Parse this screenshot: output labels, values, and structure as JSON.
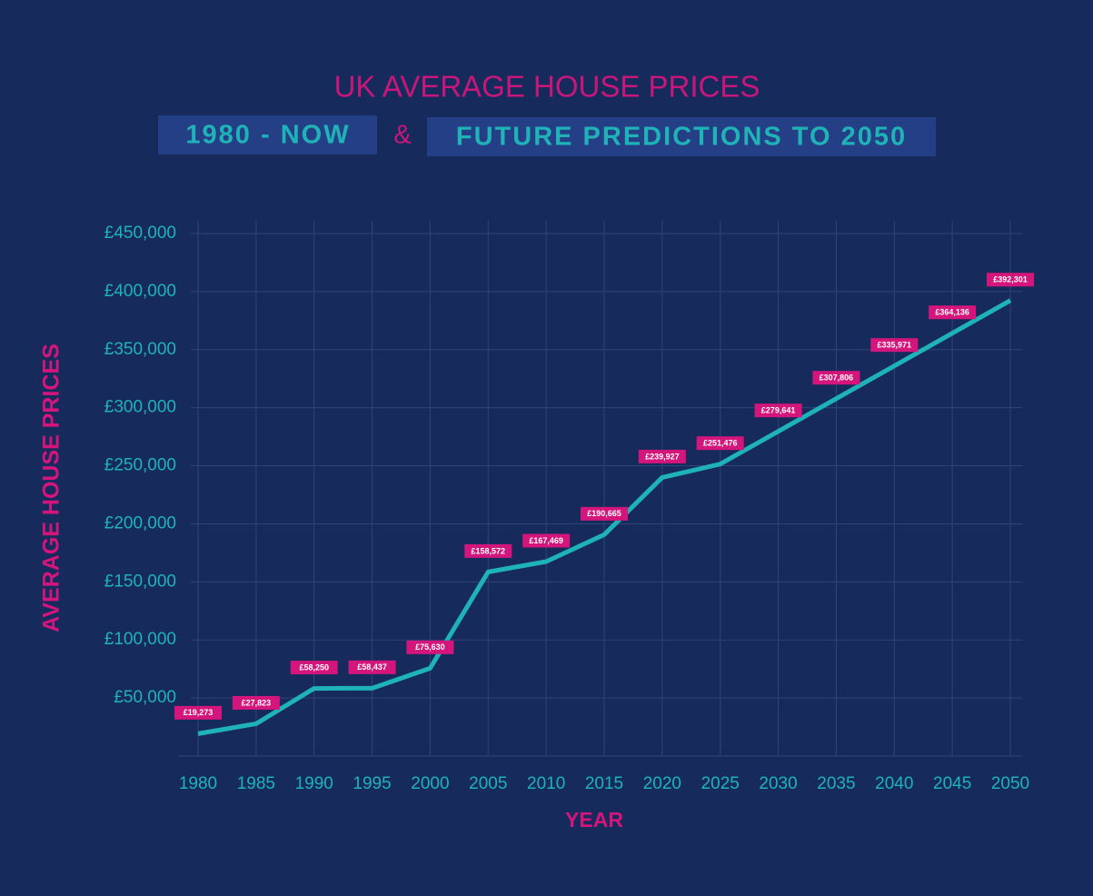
{
  "chart_data": {
    "type": "line",
    "title": "UK AVERAGE HOUSE PRICES",
    "subtitle_left": "1980 - NOW",
    "subtitle_joiner": "&",
    "subtitle_right": "FUTURE PREDICTIONS TO 2050",
    "y_label": "AVERAGE HOUSE PRICES",
    "x_label": "YEAR",
    "x": [
      1980,
      1985,
      1990,
      1995,
      2000,
      2005,
      2010,
      2015,
      2020,
      2025,
      2030,
      2035,
      2040,
      2045,
      2050
    ],
    "values": [
      19273,
      27823,
      58250,
      58437,
      75630,
      158572,
      167469,
      190665,
      239927,
      251476,
      279641,
      307806,
      335971,
      364136,
      392301
    ],
    "value_labels": [
      "£19,273",
      "£27,823",
      "£58,250",
      "£58,437",
      "£75,630",
      "£158,572",
      "£167,469",
      "£190,665",
      "£239,927",
      "£251,476",
      "£279,641",
      "£307,806",
      "£335,971",
      "£364,136",
      "£392,301"
    ],
    "color": "#1fb3b8",
    "label_color": "#d4157c",
    "xlim": [
      1980,
      2050
    ],
    "xticks": [
      1980,
      1985,
      1990,
      1995,
      2000,
      2005,
      2010,
      2015,
      2020,
      2025,
      2030,
      2035,
      2040,
      2045,
      2050
    ],
    "ylim": [
      0,
      450000
    ],
    "yticks": [
      {
        "value": 50000,
        "label": "£50,000"
      },
      {
        "value": 100000,
        "label": "£100,000"
      },
      {
        "value": 150000,
        "label": "£150,000"
      },
      {
        "value": 200000,
        "label": "£200,000"
      },
      {
        "value": 250000,
        "label": "£250,000"
      },
      {
        "value": 300000,
        "label": "£300,000"
      },
      {
        "value": 350000,
        "label": "£350,000"
      },
      {
        "value": 400000,
        "label": "£400,000"
      },
      {
        "value": 450000,
        "label": "£450,000"
      }
    ],
    "grid": true
  }
}
